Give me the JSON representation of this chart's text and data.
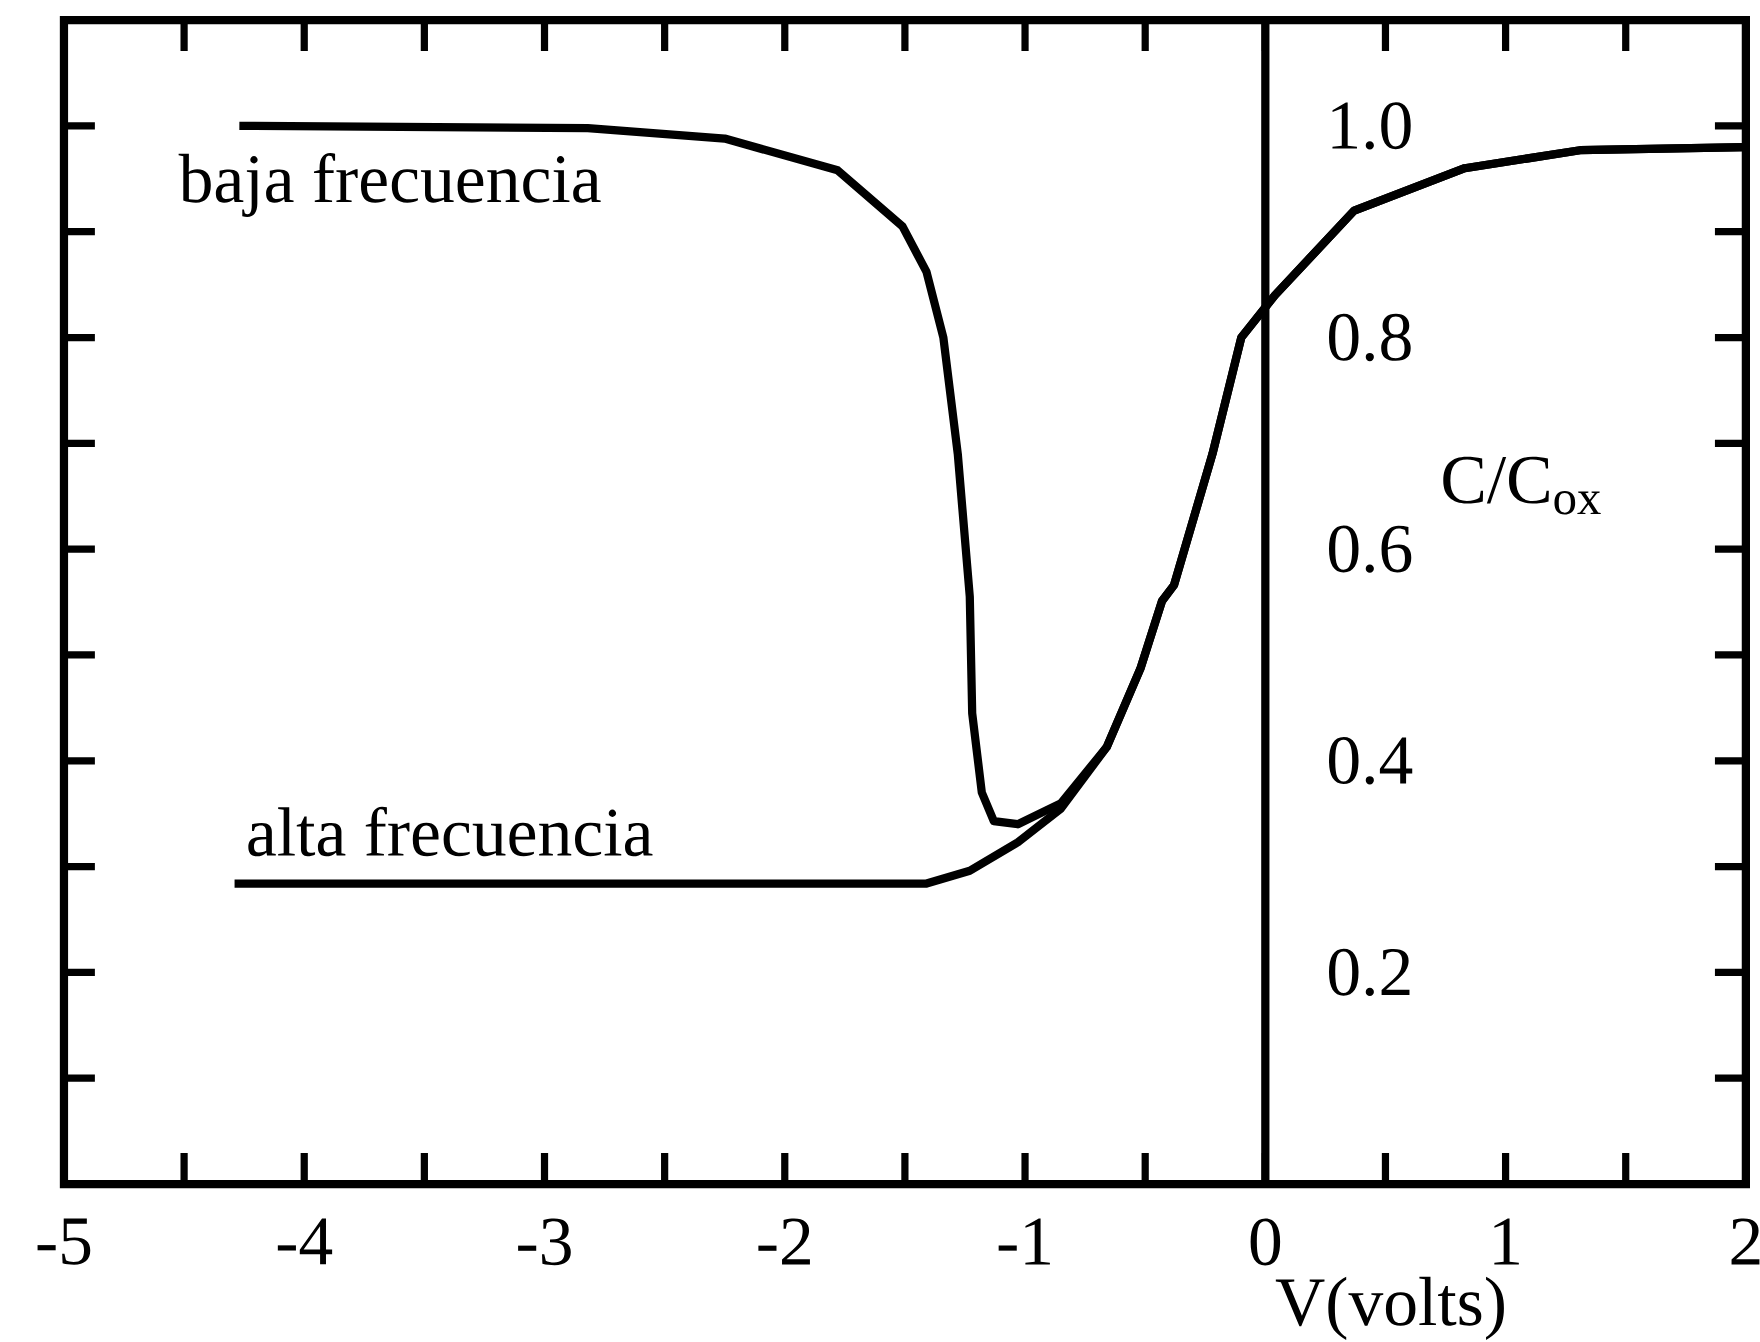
{
  "chart_data": {
    "type": "line",
    "xlabel": "V(volts)",
    "ylabel": "C/C$_{ox}$",
    "xlim": [
      -5,
      2
    ],
    "ylim": [
      0,
      1.1
    ],
    "xticks": [
      -5,
      {
        "value": -4.5,
        "label": null
      },
      -4,
      {
        "value": -3.5,
        "label": null
      },
      -3,
      {
        "value": -2.5,
        "label": null
      },
      -2,
      {
        "value": -1.5,
        "label": null
      },
      -1,
      {
        "value": -0.5,
        "label": null
      },
      0,
      {
        "value": 0.5,
        "label": null
      },
      1,
      {
        "value": 1.5,
        "label": null
      },
      2
    ],
    "yticks": [
      {
        "value": 0.1,
        "label": null
      },
      {
        "value": 0.2,
        "label": "0.2"
      },
      {
        "value": 0.3,
        "label": null
      },
      {
        "value": 0.4,
        "label": "0.4"
      },
      {
        "value": 0.5,
        "label": null
      },
      {
        "value": 0.6,
        "label": "0.6"
      },
      {
        "value": 0.7,
        "label": null
      },
      {
        "value": 0.8,
        "label": "0.8"
      },
      {
        "value": 0.9,
        "label": null
      },
      {
        "value": 1.0,
        "label": "1.0"
      }
    ],
    "grid": false,
    "legend": "top left",
    "marker": "none",
    "line_style": "solid",
    "series": [
      {
        "name": "baja frecuencia",
        "color": "#000000",
        "x": [
          -4.27,
          -2.82,
          -2.25,
          -1.78,
          -1.51,
          -1.41,
          -1.34,
          -1.28,
          -1.23,
          -1.22,
          -1.18,
          -1.13,
          -1.03,
          -0.85,
          -0.66,
          -0.52,
          -0.43,
          -0.38,
          -0.22,
          -0.1,
          0.04,
          0.37,
          0.83,
          1.31,
          2.0
        ],
        "values": [
          1.0,
          0.998,
          0.988,
          0.958,
          0.905,
          0.862,
          0.8,
          0.69,
          0.555,
          0.445,
          0.37,
          0.343,
          0.34,
          0.36,
          0.413,
          0.487,
          0.551,
          0.566,
          0.69,
          0.8,
          0.84,
          0.92,
          0.96,
          0.977,
          0.98
        ]
      },
      {
        "name": "alta frecuencia",
        "color": "#000000",
        "x": [
          -4.29,
          -1.41,
          -1.23,
          -1.03,
          -0.85,
          -0.66,
          -0.52,
          -0.43,
          -0.38,
          -0.22,
          -0.1,
          0.04,
          0.37,
          0.83,
          1.31,
          2.0
        ],
        "values": [
          0.284,
          0.284,
          0.296,
          0.323,
          0.355,
          0.413,
          0.487,
          0.551,
          0.566,
          0.69,
          0.8,
          0.84,
          0.92,
          0.96,
          0.977,
          0.98
        ]
      }
    ]
  }
}
